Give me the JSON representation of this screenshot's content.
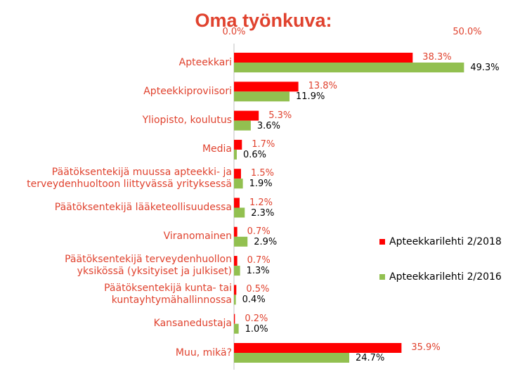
{
  "chart_data": {
    "type": "bar",
    "orientation": "horizontal",
    "title": "Oma työnkuva:",
    "xlim": [
      0,
      50
    ],
    "x_ticks": [
      "0.0%",
      "50.0%"
    ],
    "legend_position": "right",
    "categories": [
      "Apteekkari",
      "Apteekkiproviisori",
      "Yliopisto, koulutus",
      "Media",
      "Päätöksentekijä muussa apteekki- ja terveydenhuoltoon liittyvässä yrityksessä",
      "Päätöksentekijä lääketeollisuudessa",
      "Viranomainen",
      "Päätöksentekijä terveydenhuollon yksikössä (yksityiset ja julkiset)",
      "Päätöksentekijä kunta- tai kuntayhtymähallinnossa",
      "Kansanedustaja",
      "Muu, mikä?"
    ],
    "category_lines": [
      [
        "Apteekkari"
      ],
      [
        "Apteekkiproviisori"
      ],
      [
        "Yliopisto, koulutus"
      ],
      [
        "Media"
      ],
      [
        "Päätöksentekijä muussa apteekki- ja",
        "terveydenhuoltoon liittyvässä yrityksessä"
      ],
      [
        "Päätöksentekijä lääketeollisuudessa"
      ],
      [
        "Viranomainen"
      ],
      [
        "Päätöksentekijä terveydenhuollon",
        "yksikössä (yksityiset ja julkiset)"
      ],
      [
        "Päätöksentekijä kunta- tai",
        "kuntayhtymähallinnossa"
      ],
      [
        "Kansanedustaja"
      ],
      [
        "Muu, mikä?"
      ]
    ],
    "series": [
      {
        "name": "Apteekkarilehti 2/2018",
        "color": "#ff0000",
        "values": [
          38.3,
          13.8,
          5.3,
          1.7,
          1.5,
          1.2,
          0.7,
          0.7,
          0.5,
          0.2,
          35.9
        ],
        "labels": [
          "38.3%",
          "13.8%",
          "5.3%",
          "1.7%",
          "1.5%",
          "1.2%",
          "0.7%",
          "0.7%",
          "0.5%",
          "0.2%",
          "35.9%"
        ]
      },
      {
        "name": "Apteekkarilehti 2/2016",
        "color": "#92c050",
        "values": [
          49.3,
          11.9,
          3.6,
          0.6,
          1.9,
          2.3,
          2.9,
          1.3,
          0.4,
          1.0,
          24.7
        ],
        "labels": [
          "49.3%",
          "11.9%",
          "3.6%",
          "0.6%",
          "1.9%",
          "2.3%",
          "2.9%",
          "1.3%",
          "0.4%",
          "1.0%",
          "24.7%"
        ]
      }
    ]
  }
}
